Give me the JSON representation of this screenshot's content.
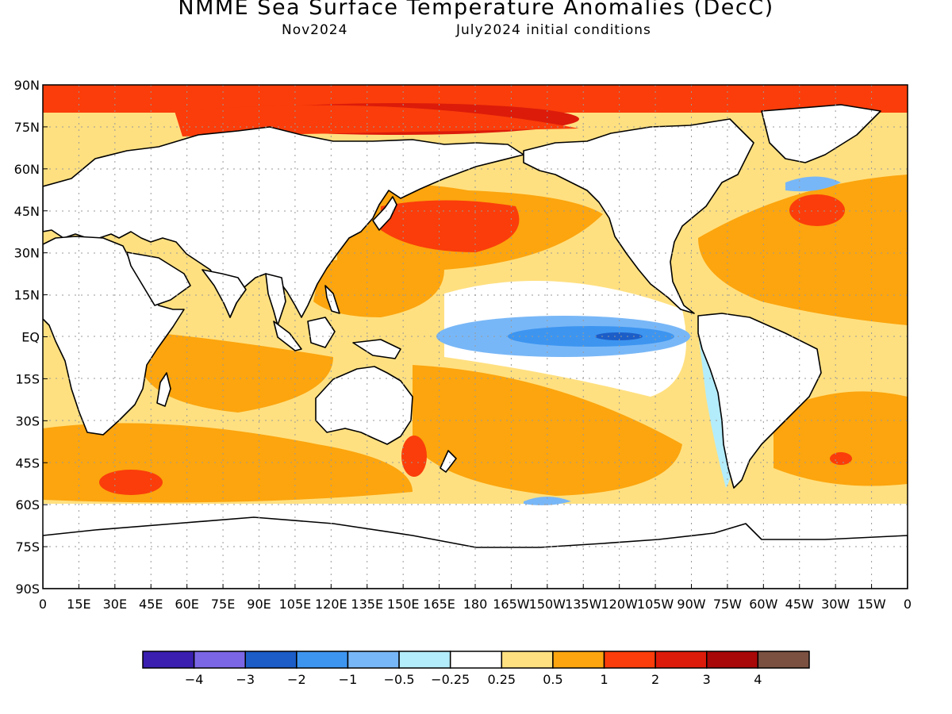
{
  "title": "NMME Sea Surface Temperature Anomalies (DecC)",
  "valid_month": "Nov2024",
  "init_conditions": "July2024 initial conditions",
  "lat_labels": [
    "90N",
    "75N",
    "60N",
    "45N",
    "30N",
    "15N",
    "EQ",
    "15S",
    "30S",
    "45S",
    "60S",
    "75S",
    "90S"
  ],
  "lon_labels": [
    "0",
    "15E",
    "30E",
    "45E",
    "60E",
    "75E",
    "90E",
    "105E",
    "120E",
    "135E",
    "150E",
    "165E",
    "180",
    "165W",
    "150W",
    "135W",
    "120W",
    "105W",
    "90W",
    "75W",
    "60W",
    "45W",
    "30W",
    "15W",
    "0"
  ],
  "colorbar": {
    "colors": [
      "#3a1fb0",
      "#7b66e6",
      "#1c5dc7",
      "#3d95f0",
      "#78b7f7",
      "#b3ecfa",
      "#ffffff",
      "#ffe080",
      "#fca50e",
      "#fa3d0a",
      "#dc1b0a",
      "#a80808",
      "#7b5142"
    ],
    "tick_labels": [
      "−4",
      "−3",
      "−2",
      "−1",
      "−0.5",
      "−0.25",
      "0.25",
      "0.5",
      "1",
      "2",
      "3",
      "4"
    ]
  },
  "colors": {
    "land": "#ffffff",
    "coastline": "#000000",
    "grid": "#9a9a9a"
  }
}
